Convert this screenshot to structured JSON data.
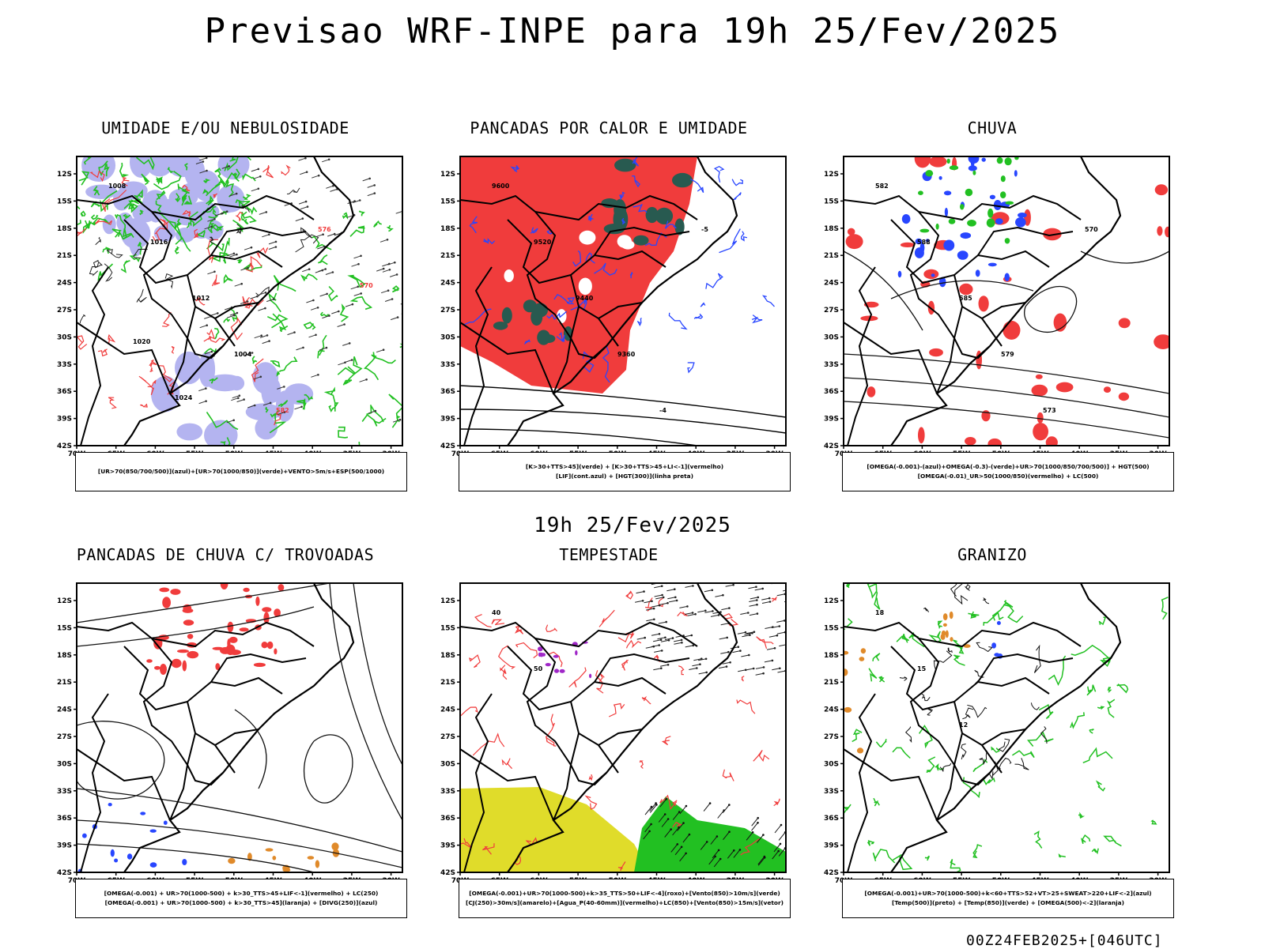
{
  "header": {
    "title": "Previsao WRF-INPE  para 19h 25/Fev/2025",
    "middle_title": "19h 25/Fev/2025",
    "footer_code": "00Z24FEB2025+[046UTC]"
  },
  "axes": {
    "lat_ticks": [
      "12S",
      "15S",
      "18S",
      "21S",
      "24S",
      "27S",
      "30S",
      "33S",
      "36S",
      "39S",
      "42S"
    ],
    "lon_ticks": [
      "70W",
      "65W",
      "60W",
      "55W",
      "50W",
      "45W",
      "40W",
      "35W",
      "30W"
    ]
  },
  "colors": {
    "green": "#22c022",
    "red": "#f03c3c",
    "blue": "#2846ff",
    "lavender": "#b4b4f0",
    "darkteal": "#285a50",
    "yellow": "#e0dc2a",
    "orange": "#e08a2a",
    "purple": "#a028c8"
  },
  "panels": [
    {
      "title": "UMIDADE E/OU NEBULOSIDADE",
      "legend": [
        "[UR>70(850/700/500)](azul)+[UR>70(1000/850)](verde)+VENTO>5m/s+ESP(500/1000)"
      ],
      "labels": [
        "1008",
        "1016",
        "1012",
        "1004",
        "582",
        "576",
        "570",
        "1020",
        "1024"
      ]
    },
    {
      "title": "PANCADAS POR CALOR E UMIDADE",
      "legend": [
        "[K>30+TTS>45](verde) + [K>30+TTS>45+LI<-1](vermelho)",
        "[LIF](cont.azul) + [HGT(300)](linha preta)"
      ],
      "labels": [
        "9600",
        "9520",
        "9440",
        "9360",
        "-4",
        "-5"
      ]
    },
    {
      "title": "CHUVA",
      "legend": [
        "[OMEGA(-0.001)-(azul)+OMEGA(-0.3)-(verde)+UR>70(1000/850/700/500)] + HGT(500)",
        "[OMEGA(-0.01)_UR>50(1000/850)(vermelho) + LC(500)"
      ],
      "labels": [
        "582",
        "588",
        "585",
        "579",
        "573",
        "570"
      ]
    },
    {
      "title": "PANCADAS DE CHUVA C/ TROVOADAS",
      "legend": [
        "[OMEGA(-0.001) + UR>70(1000-500) + k>30_TTS>45+LIF<-1](vermelho) + LC(250)",
        "[OMEGA(-0.001) + UR>70(1000-500) + k>30_TTS>45](laranja) + [DIVG(250)](azul)"
      ],
      "labels": []
    },
    {
      "title": "TEMPESTADE",
      "legend": [
        "[OMEGA(-0.001)+UR>70(1000-500)+k>35_TTS>50+LIF<-4](roxo)+[Vento(850)>10m/s](verde)",
        "[CJ(250)>30m/s](amarelo)+[Agua_P(40-60mm)](vermelho)+LC(850)+[Vento(850)>15m/s](vetor)"
      ],
      "labels": [
        "40",
        "50"
      ]
    },
    {
      "title": "GRANIZO",
      "legend": [
        "[OMEGA(-0.001)+UR>70(1000-500)+k<60+TTS>52+VT>25+SWEAT>220+LIF<-2](azul)",
        "[Temp(500)](preto) + [Temp(850)](verde) + [OMEGA(500)<-2](laranja)"
      ],
      "labels": [
        "18",
        "15",
        "12"
      ]
    }
  ]
}
